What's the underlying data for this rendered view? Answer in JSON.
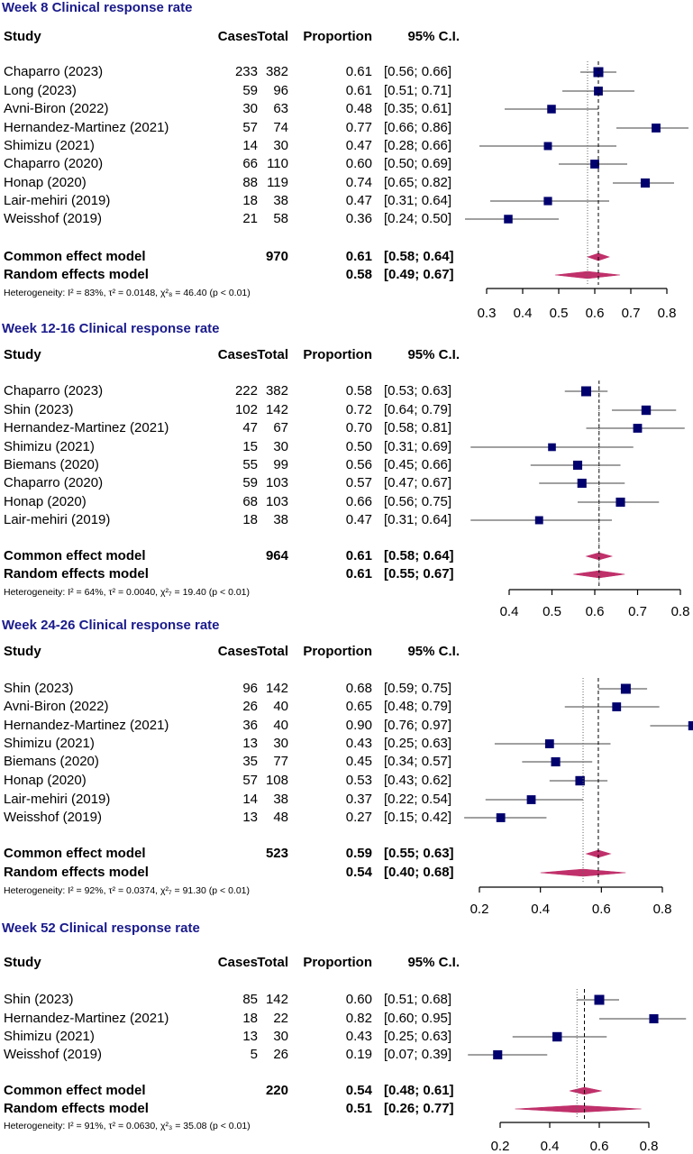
{
  "chart_data": [
    {
      "type": "forest",
      "title": "Week 8 Clinical response rate",
      "columns": [
        "Study",
        "Cases",
        "Total",
        "Proportion",
        "95% C.I."
      ],
      "axis": {
        "xlim": [
          0.3,
          0.8
        ],
        "ticks": [
          "0.3",
          "0.4",
          "0.5",
          "0.6",
          "0.7",
          "0.8"
        ]
      },
      "ref_lines": {
        "common": 0.61,
        "random": 0.58
      },
      "studies": [
        {
          "study": "Chaparro  (2023)",
          "cases": "233",
          "total": "382",
          "prop": "0.61",
          "ci": "[0.56; 0.66]",
          "est": 0.61,
          "lo": 0.56,
          "hi": 0.66,
          "w": 1.0
        },
        {
          "study": "Long  (2023)",
          "cases": "59",
          "total": "96",
          "prop": "0.61",
          "ci": "[0.51; 0.71]",
          "est": 0.61,
          "lo": 0.51,
          "hi": 0.71,
          "w": 0.8
        },
        {
          "study": "Avni-Biron (2022)",
          "cases": "30",
          "total": "63",
          "prop": "0.48",
          "ci": "[0.35; 0.61]",
          "est": 0.48,
          "lo": 0.35,
          "hi": 0.61,
          "w": 0.75
        },
        {
          "study": "Hernandez-Martinez (2021)",
          "cases": "57",
          "total": "74",
          "prop": "0.77",
          "ci": "[0.66; 0.86]",
          "est": 0.77,
          "lo": 0.66,
          "hi": 0.86,
          "w": 0.8
        },
        {
          "study": "Shimizu (2021)",
          "cases": "14",
          "total": "30",
          "prop": "0.47",
          "ci": "[0.28; 0.66]",
          "est": 0.47,
          "lo": 0.28,
          "hi": 0.66,
          "w": 0.65
        },
        {
          "study": "Chaparro (2020)",
          "cases": "66",
          "total": "110",
          "prop": "0.60",
          "ci": "[0.50; 0.69]",
          "est": 0.6,
          "lo": 0.5,
          "hi": 0.69,
          "w": 0.8
        },
        {
          "study": "Honap (2020)",
          "cases": "88",
          "total": "119",
          "prop": "0.74",
          "ci": "[0.65; 0.82]",
          "est": 0.74,
          "lo": 0.65,
          "hi": 0.82,
          "w": 0.85
        },
        {
          "study": "Lair-mehiri (2019)",
          "cases": "18",
          "total": "38",
          "prop": "0.47",
          "ci": "[0.31; 0.64]",
          "est": 0.47,
          "lo": 0.31,
          "hi": 0.64,
          "w": 0.7
        },
        {
          "study": "Weisshof  (2019)",
          "cases": "21",
          "total": "58",
          "prop": "0.36",
          "ci": "[0.24; 0.50]",
          "est": 0.36,
          "lo": 0.24,
          "hi": 0.5,
          "w": 0.75
        }
      ],
      "common": {
        "label": "Common effect model",
        "total": "970",
        "prop": "0.61",
        "ci": "[0.58; 0.64]",
        "est": 0.61,
        "lo": 0.58,
        "hi": 0.64
      },
      "random": {
        "label": "Random effects model",
        "prop": "0.58",
        "ci": "[0.49; 0.67]",
        "est": 0.58,
        "lo": 0.49,
        "hi": 0.67
      },
      "heterogeneity": "Heterogeneity: I² = 83%, τ² = 0.0148, χ²₈ = 46.40 (p < 0.01)"
    },
    {
      "type": "forest",
      "title": "Week 12-16 Clinical response rate",
      "columns": [
        "Study",
        "Cases",
        "Total",
        "Proportion",
        "95% C.I."
      ],
      "axis": {
        "xlim": [
          0.4,
          0.8
        ],
        "ticks": [
          "0.4",
          "0.5",
          "0.6",
          "0.7",
          "0.8"
        ]
      },
      "ref_lines": {
        "common": 0.61,
        "random": 0.61
      },
      "studies": [
        {
          "study": "Chaparro (2023)",
          "cases": "222",
          "total": "382",
          "prop": "0.58",
          "ci": "[0.53; 0.63]",
          "est": 0.58,
          "lo": 0.53,
          "hi": 0.63,
          "w": 1.0
        },
        {
          "study": "Shin (2023)",
          "cases": "102",
          "total": "142",
          "prop": "0.72",
          "ci": "[0.64; 0.79]",
          "est": 0.72,
          "lo": 0.64,
          "hi": 0.79,
          "w": 0.9
        },
        {
          "study": "Hernandez-Martinez (2021)",
          "cases": "47",
          "total": "67",
          "prop": "0.70",
          "ci": "[0.58; 0.81]",
          "est": 0.7,
          "lo": 0.58,
          "hi": 0.81,
          "w": 0.8
        },
        {
          "study": "Shimizu (2021)",
          "cases": "15",
          "total": "30",
          "prop": "0.50",
          "ci": "[0.31; 0.69]",
          "est": 0.5,
          "lo": 0.31,
          "hi": 0.69,
          "w": 0.6
        },
        {
          "study": "Biemans (2020)",
          "cases": "55",
          "total": "99",
          "prop": "0.56",
          "ci": "[0.45; 0.66]",
          "est": 0.56,
          "lo": 0.45,
          "hi": 0.66,
          "w": 0.85
        },
        {
          "study": "Chaparro (2020)",
          "cases": "59",
          "total": "103",
          "prop": "0.57",
          "ci": "[0.47; 0.67]",
          "est": 0.57,
          "lo": 0.47,
          "hi": 0.67,
          "w": 0.85
        },
        {
          "study": "Honap (2020)",
          "cases": "68",
          "total": "103",
          "prop": "0.66",
          "ci": "[0.56; 0.75]",
          "est": 0.66,
          "lo": 0.56,
          "hi": 0.75,
          "w": 0.85
        },
        {
          "study": "Lair-mehiri (2019)",
          "cases": "18",
          "total": "38",
          "prop": "0.47",
          "ci": "[0.31; 0.64]",
          "est": 0.47,
          "lo": 0.31,
          "hi": 0.64,
          "w": 0.65
        }
      ],
      "common": {
        "label": "Common effect model",
        "total": "964",
        "prop": "0.61",
        "ci": "[0.58; 0.64]",
        "est": 0.61,
        "lo": 0.58,
        "hi": 0.64
      },
      "random": {
        "label": "Random effects model",
        "prop": "0.61",
        "ci": "[0.55; 0.67]",
        "est": 0.61,
        "lo": 0.55,
        "hi": 0.67
      },
      "heterogeneity": "Heterogeneity: I² = 64%, τ² = 0.0040, χ²₇ = 19.40 (p < 0.01)"
    },
    {
      "type": "forest",
      "title": "Week 24-26 Clinical response rate",
      "columns": [
        "Study",
        "Cases",
        "Total",
        "Proportion",
        "95% C.I."
      ],
      "axis": {
        "xlim": [
          0.2,
          0.8
        ],
        "ticks": [
          "0.2",
          "0.4",
          "0.6",
          "0.8"
        ]
      },
      "ref_lines": {
        "common": 0.59,
        "random": 0.54
      },
      "studies": [
        {
          "study": "Shin (2023)",
          "cases": "96",
          "total": "142",
          "prop": "0.68",
          "ci": "[0.59; 0.75]",
          "est": 0.68,
          "lo": 0.59,
          "hi": 0.75,
          "w": 1.0
        },
        {
          "study": "Avni-Biron (2022)",
          "cases": "26",
          "total": "40",
          "prop": "0.65",
          "ci": "[0.48; 0.79]",
          "est": 0.65,
          "lo": 0.48,
          "hi": 0.79,
          "w": 0.8
        },
        {
          "study": "Hernandez-Martinez (2021)",
          "cases": "36",
          "total": "40",
          "prop": "0.90",
          "ci": "[0.76; 0.97]",
          "est": 0.9,
          "lo": 0.76,
          "hi": 0.97,
          "w": 0.85
        },
        {
          "study": "Shimizu (2021)",
          "cases": "13",
          "total": "30",
          "prop": "0.43",
          "ci": "[0.25; 0.63]",
          "est": 0.43,
          "lo": 0.25,
          "hi": 0.63,
          "w": 0.8
        },
        {
          "study": "Biemans (2020)",
          "cases": "35",
          "total": "77",
          "prop": "0.45",
          "ci": "[0.34; 0.57]",
          "est": 0.45,
          "lo": 0.34,
          "hi": 0.57,
          "w": 0.85
        },
        {
          "study": "Honap (2020)",
          "cases": "57",
          "total": "108",
          "prop": "0.53",
          "ci": "[0.43; 0.62]",
          "est": 0.53,
          "lo": 0.43,
          "hi": 0.62,
          "w": 0.9
        },
        {
          "study": "Lair-mehiri (2019)",
          "cases": "14",
          "total": "38",
          "prop": "0.37",
          "ci": "[0.22; 0.54]",
          "est": 0.37,
          "lo": 0.22,
          "hi": 0.54,
          "w": 0.8
        },
        {
          "study": "Weisshof  (2019)",
          "cases": "13",
          "total": "48",
          "prop": "0.27",
          "ci": "[0.15; 0.42]",
          "est": 0.27,
          "lo": 0.15,
          "hi": 0.42,
          "w": 0.8
        }
      ],
      "common": {
        "label": "Common effect model",
        "total": "523",
        "prop": "0.59",
        "ci": "[0.55; 0.63]",
        "est": 0.59,
        "lo": 0.55,
        "hi": 0.63
      },
      "random": {
        "label": "Random effects model",
        "prop": "0.54",
        "ci": "[0.40; 0.68]",
        "est": 0.54,
        "lo": 0.4,
        "hi": 0.68
      },
      "heterogeneity": "Heterogeneity: I² = 92%, τ² = 0.0374, χ²₇ = 91.30 (p < 0.01)"
    },
    {
      "type": "forest",
      "title": "Week 52 Clinical response rate",
      "columns": [
        "Study",
        "Cases",
        "Total",
        "Proportion",
        "95% C.I."
      ],
      "axis": {
        "xlim": [
          0.2,
          0.8
        ],
        "ticks": [
          "0.2",
          "0.4",
          "0.6",
          "0.8"
        ]
      },
      "ref_lines": {
        "common": 0.54,
        "random": 0.51
      },
      "studies": [
        {
          "study": "Shin (2023)",
          "cases": "85",
          "total": "142",
          "prop": "0.60",
          "ci": "[0.51; 0.68]",
          "est": 0.6,
          "lo": 0.51,
          "hi": 0.68,
          "w": 1.0
        },
        {
          "study": "Hernandez-Martinez (2021)",
          "cases": "18",
          "total": "22",
          "prop": "0.82",
          "ci": "[0.60; 0.95]",
          "est": 0.82,
          "lo": 0.6,
          "hi": 0.95,
          "w": 0.85
        },
        {
          "study": "Shimizu (2021)",
          "cases": "13",
          "total": "30",
          "prop": "0.43",
          "ci": "[0.25; 0.63]",
          "est": 0.43,
          "lo": 0.25,
          "hi": 0.63,
          "w": 0.9
        },
        {
          "study": "Weisshof  (2019)",
          "cases": "5",
          "total": "26",
          "prop": "0.19",
          "ci": "[0.07; 0.39]",
          "est": 0.19,
          "lo": 0.07,
          "hi": 0.39,
          "w": 0.85
        }
      ],
      "common": {
        "label": "Common effect model",
        "total": "220",
        "prop": "0.54",
        "ci": "[0.48; 0.61]",
        "est": 0.54,
        "lo": 0.48,
        "hi": 0.61
      },
      "random": {
        "label": "Random effects model",
        "prop": "0.51",
        "ci": "[0.26; 0.77]",
        "est": 0.51,
        "lo": 0.26,
        "hi": 0.77
      },
      "heterogeneity": "Heterogeneity: I² = 91%, τ² = 0.0630, χ²₃ = 35.08 (p < 0.01)"
    }
  ],
  "colors": {
    "title": "#1a1a8c",
    "square": "#00006e",
    "diamond": "#c0306a",
    "ci_line": "#808080"
  }
}
